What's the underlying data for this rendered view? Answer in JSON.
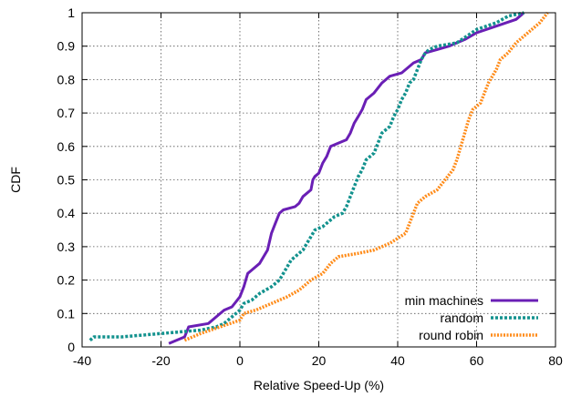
{
  "chart_data": {
    "type": "line",
    "title": "",
    "xlabel": "Relative Speed-Up (%)",
    "ylabel": "CDF",
    "xlim": [
      -40,
      80
    ],
    "ylim": [
      0,
      1
    ],
    "x_ticks": [
      "-40",
      "-20",
      "0",
      "20",
      "40",
      "60",
      "80"
    ],
    "y_ticks": [
      "0",
      "0.1",
      "0.2",
      "0.3",
      "0.4",
      "0.5",
      "0.6",
      "0.7",
      "0.8",
      "0.9",
      "1"
    ],
    "grid": true,
    "legend_position": "bottom-right",
    "series": [
      {
        "name": "min machines",
        "color": "#6a1fb5",
        "style": "solid",
        "points": [
          [
            -18,
            0.01
          ],
          [
            -14,
            0.03
          ],
          [
            -13,
            0.06
          ],
          [
            -8,
            0.07
          ],
          [
            -6,
            0.09
          ],
          [
            -4,
            0.11
          ],
          [
            -2,
            0.12
          ],
          [
            0,
            0.15
          ],
          [
            1,
            0.18
          ],
          [
            2,
            0.22
          ],
          [
            3,
            0.23
          ],
          [
            5,
            0.25
          ],
          [
            6,
            0.27
          ],
          [
            7,
            0.29
          ],
          [
            8,
            0.34
          ],
          [
            9,
            0.37
          ],
          [
            10,
            0.4
          ],
          [
            11,
            0.41
          ],
          [
            14,
            0.42
          ],
          [
            15,
            0.43
          ],
          [
            16,
            0.45
          ],
          [
            17,
            0.46
          ],
          [
            18,
            0.47
          ],
          [
            18.5,
            0.5
          ],
          [
            19,
            0.51
          ],
          [
            20,
            0.52
          ],
          [
            21,
            0.55
          ],
          [
            22,
            0.57
          ],
          [
            23,
            0.6
          ],
          [
            25,
            0.61
          ],
          [
            27,
            0.62
          ],
          [
            28,
            0.64
          ],
          [
            29,
            0.67
          ],
          [
            30,
            0.69
          ],
          [
            31,
            0.71
          ],
          [
            32,
            0.74
          ],
          [
            34,
            0.76
          ],
          [
            36,
            0.79
          ],
          [
            38,
            0.81
          ],
          [
            41,
            0.82
          ],
          [
            44,
            0.85
          ],
          [
            46,
            0.86
          ],
          [
            47,
            0.88
          ],
          [
            50,
            0.89
          ],
          [
            53,
            0.9
          ],
          [
            55,
            0.91
          ],
          [
            57,
            0.92
          ],
          [
            60,
            0.94
          ],
          [
            65,
            0.96
          ],
          [
            70,
            0.98
          ],
          [
            72,
            1.0
          ]
        ]
      },
      {
        "name": "random",
        "color": "#13928e",
        "style": "dashed",
        "points": [
          [
            -38,
            0.02
          ],
          [
            -37,
            0.03
          ],
          [
            -30,
            0.03
          ],
          [
            -20,
            0.04
          ],
          [
            -10,
            0.05
          ],
          [
            -6,
            0.06
          ],
          [
            -4,
            0.07
          ],
          [
            -2,
            0.09
          ],
          [
            0,
            0.11
          ],
          [
            1,
            0.13
          ],
          [
            3,
            0.14
          ],
          [
            5,
            0.16
          ],
          [
            8,
            0.18
          ],
          [
            10,
            0.2
          ],
          [
            11,
            0.22
          ],
          [
            13,
            0.26
          ],
          [
            15,
            0.28
          ],
          [
            16,
            0.29
          ],
          [
            17,
            0.31
          ],
          [
            18,
            0.33
          ],
          [
            19,
            0.35
          ],
          [
            21,
            0.36
          ],
          [
            23,
            0.38
          ],
          [
            24,
            0.39
          ],
          [
            26,
            0.4
          ],
          [
            27,
            0.42
          ],
          [
            28,
            0.45
          ],
          [
            29,
            0.48
          ],
          [
            30,
            0.51
          ],
          [
            31,
            0.53
          ],
          [
            32,
            0.56
          ],
          [
            34,
            0.58
          ],
          [
            35,
            0.61
          ],
          [
            36,
            0.64
          ],
          [
            38,
            0.66
          ],
          [
            39,
            0.69
          ],
          [
            40,
            0.71
          ],
          [
            41,
            0.74
          ],
          [
            42,
            0.76
          ],
          [
            43,
            0.79
          ],
          [
            44,
            0.8
          ],
          [
            45,
            0.83
          ],
          [
            46,
            0.86
          ],
          [
            47,
            0.88
          ],
          [
            48,
            0.89
          ],
          [
            50,
            0.9
          ],
          [
            55,
            0.91
          ],
          [
            60,
            0.95
          ],
          [
            65,
            0.97
          ],
          [
            68,
            0.99
          ],
          [
            72,
            1.0
          ]
        ]
      },
      {
        "name": "round robin",
        "color": "#ff8c1a",
        "style": "dotted",
        "points": [
          [
            -14,
            0.02
          ],
          [
            -10,
            0.04
          ],
          [
            -5,
            0.06
          ],
          [
            0,
            0.08
          ],
          [
            1,
            0.1
          ],
          [
            4,
            0.11
          ],
          [
            8,
            0.13
          ],
          [
            10,
            0.14
          ],
          [
            12,
            0.15
          ],
          [
            15,
            0.17
          ],
          [
            18,
            0.2
          ],
          [
            21,
            0.22
          ],
          [
            23,
            0.25
          ],
          [
            25,
            0.27
          ],
          [
            30,
            0.28
          ],
          [
            34,
            0.29
          ],
          [
            38,
            0.31
          ],
          [
            42,
            0.34
          ],
          [
            43,
            0.37
          ],
          [
            44,
            0.4
          ],
          [
            45,
            0.43
          ],
          [
            47,
            0.45
          ],
          [
            50,
            0.47
          ],
          [
            52,
            0.5
          ],
          [
            54,
            0.53
          ],
          [
            55,
            0.56
          ],
          [
            56,
            0.6
          ],
          [
            57,
            0.64
          ],
          [
            58,
            0.68
          ],
          [
            59,
            0.71
          ],
          [
            61,
            0.73
          ],
          [
            62,
            0.76
          ],
          [
            63,
            0.79
          ],
          [
            65,
            0.83
          ],
          [
            66,
            0.86
          ],
          [
            68,
            0.88
          ],
          [
            70,
            0.91
          ],
          [
            72,
            0.93
          ],
          [
            74,
            0.95
          ],
          [
            76,
            0.97
          ],
          [
            78,
            1.0
          ]
        ]
      }
    ]
  }
}
